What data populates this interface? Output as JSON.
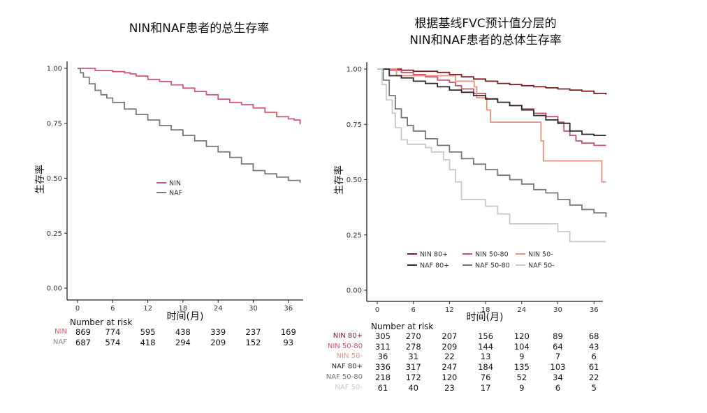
{
  "chart_data": [
    {
      "type": "line",
      "title": "NIN和NAF患者的总生存率",
      "xlabel": "时间(月)",
      "ylabel": "生存率",
      "xlim": [
        0,
        38
      ],
      "ylim": [
        0,
        1
      ],
      "x_ticks": [
        "0",
        "6",
        "12",
        "18",
        "24",
        "30",
        "36"
      ],
      "y_ticks": [
        "0.00",
        "0.25",
        "0.50",
        "0.75",
        "1.00"
      ],
      "legend_position": "center",
      "series": [
        {
          "name": "NIN",
          "color": "#d2596f",
          "points": [
            [
              0,
              1.0
            ],
            [
              3,
              0.99
            ],
            [
              6,
              0.985
            ],
            [
              8,
              0.98
            ],
            [
              9,
              0.975
            ],
            [
              10,
              0.965
            ],
            [
              12,
              0.95
            ],
            [
              14,
              0.94
            ],
            [
              16,
              0.925
            ],
            [
              18,
              0.91
            ],
            [
              20,
              0.895
            ],
            [
              22,
              0.88
            ],
            [
              24,
              0.86
            ],
            [
              26,
              0.845
            ],
            [
              28,
              0.835
            ],
            [
              30,
              0.82
            ],
            [
              32,
              0.8
            ],
            [
              34,
              0.78
            ],
            [
              36,
              0.77
            ],
            [
              37,
              0.765
            ],
            [
              38,
              0.745
            ]
          ]
        },
        {
          "name": "NAF",
          "color": "#7a7a7a",
          "points": [
            [
              0,
              1.0
            ],
            [
              0.5,
              0.98
            ],
            [
              1,
              0.96
            ],
            [
              2,
              0.93
            ],
            [
              3,
              0.9
            ],
            [
              4,
              0.88
            ],
            [
              5,
              0.865
            ],
            [
              6,
              0.845
            ],
            [
              8,
              0.815
            ],
            [
              10,
              0.79
            ],
            [
              12,
              0.765
            ],
            [
              14,
              0.74
            ],
            [
              16,
              0.72
            ],
            [
              18,
              0.695
            ],
            [
              20,
              0.67
            ],
            [
              22,
              0.645
            ],
            [
              24,
              0.62
            ],
            [
              26,
              0.595
            ],
            [
              28,
              0.565
            ],
            [
              30,
              0.535
            ],
            [
              32,
              0.52
            ],
            [
              34,
              0.505
            ],
            [
              36,
              0.49
            ],
            [
              38,
              0.48
            ]
          ]
        }
      ],
      "risk_table": {
        "header": "Number at risk",
        "times": [
          0,
          6,
          12,
          18,
          24,
          30,
          36
        ],
        "rows": [
          {
            "label": "NIN",
            "color": "#d2596f",
            "values": [
              "869",
              "774",
              "595",
              "438",
              "339",
              "237",
              "169"
            ]
          },
          {
            "label": "NAF",
            "color": "#888888",
            "values": [
              "687",
              "574",
              "418",
              "294",
              "209",
              "152",
              "93"
            ]
          }
        ]
      }
    },
    {
      "type": "line",
      "title_line1": "根据基线FVC预计值分层的",
      "title_line2": "NIN和NAF患者的总体生存率",
      "xlabel": "时间(月)",
      "ylabel": "生存率",
      "xlim": [
        0,
        38
      ],
      "ylim": [
        0,
        1
      ],
      "x_ticks": [
        "0",
        "6",
        "12",
        "18",
        "24",
        "30",
        "36"
      ],
      "y_ticks": [
        "0.00",
        "0.25",
        "0.50",
        "0.75",
        "1.00"
      ],
      "legend_position": "bottom-right",
      "series": [
        {
          "name": "NIN 80+",
          "color": "#7b1d25",
          "points": [
            [
              0,
              1.0
            ],
            [
              2,
              1.0
            ],
            [
              4,
              0.995
            ],
            [
              6,
              0.99
            ],
            [
              8,
              0.99
            ],
            [
              10,
              0.985
            ],
            [
              12,
              0.975
            ],
            [
              14,
              0.965
            ],
            [
              16,
              0.955
            ],
            [
              18,
              0.945
            ],
            [
              20,
              0.935
            ],
            [
              22,
              0.93
            ],
            [
              24,
              0.925
            ],
            [
              26,
              0.92
            ],
            [
              28,
              0.915
            ],
            [
              30,
              0.91
            ],
            [
              32,
              0.905
            ],
            [
              34,
              0.9
            ],
            [
              36,
              0.89
            ],
            [
              38,
              0.885
            ]
          ]
        },
        {
          "name": "NIN 50-80",
          "color": "#c9536b",
          "points": [
            [
              0,
              1.0
            ],
            [
              2,
              0.995
            ],
            [
              4,
              0.985
            ],
            [
              6,
              0.975
            ],
            [
              8,
              0.965
            ],
            [
              10,
              0.95
            ],
            [
              12,
              0.94
            ],
            [
              13,
              0.925
            ],
            [
              14,
              0.91
            ],
            [
              16,
              0.89
            ],
            [
              18,
              0.865
            ],
            [
              20,
              0.85
            ],
            [
              22,
              0.835
            ],
            [
              24,
              0.82
            ],
            [
              26,
              0.8
            ],
            [
              28,
              0.785
            ],
            [
              30,
              0.76
            ],
            [
              31,
              0.72
            ],
            [
              32,
              0.7
            ],
            [
              33,
              0.675
            ],
            [
              34,
              0.665
            ],
            [
              36,
              0.655
            ],
            [
              38,
              0.655
            ]
          ]
        },
        {
          "name": "NIN 50-",
          "color": "#e49478",
          "points": [
            [
              0,
              1.0
            ],
            [
              3,
              1.0
            ],
            [
              3.2,
              0.97
            ],
            [
              6,
              0.97
            ],
            [
              12,
              0.97
            ],
            [
              13,
              0.945
            ],
            [
              16,
              0.945
            ],
            [
              16.1,
              0.92
            ],
            [
              16.5,
              0.87
            ],
            [
              18,
              0.87
            ],
            [
              18.2,
              0.815
            ],
            [
              18.8,
              0.76
            ],
            [
              25,
              0.76
            ],
            [
              27,
              0.76
            ],
            [
              27.2,
              0.675
            ],
            [
              27.6,
              0.585
            ],
            [
              36,
              0.585
            ],
            [
              37,
              0.585
            ],
            [
              37.3,
              0.49
            ],
            [
              38,
              0.49
            ]
          ]
        },
        {
          "name": "NAF 80+",
          "color": "#2b2b2b",
          "points": [
            [
              0,
              1.0
            ],
            [
              2,
              0.97
            ],
            [
              4,
              0.96
            ],
            [
              6,
              0.945
            ],
            [
              8,
              0.935
            ],
            [
              10,
              0.92
            ],
            [
              12,
              0.905
            ],
            [
              14,
              0.895
            ],
            [
              16,
              0.88
            ],
            [
              18,
              0.865
            ],
            [
              20,
              0.85
            ],
            [
              22,
              0.835
            ],
            [
              24,
              0.815
            ],
            [
              26,
              0.79
            ],
            [
              28,
              0.77
            ],
            [
              30,
              0.755
            ],
            [
              32,
              0.72
            ],
            [
              34,
              0.705
            ],
            [
              36,
              0.7
            ],
            [
              38,
              0.7
            ]
          ]
        },
        {
          "name": "NAF 50-80",
          "color": "#777777",
          "points": [
            [
              0,
              1.0
            ],
            [
              1,
              0.95
            ],
            [
              2,
              0.88
            ],
            [
              3,
              0.82
            ],
            [
              4,
              0.78
            ],
            [
              5,
              0.745
            ],
            [
              6,
              0.72
            ],
            [
              8,
              0.685
            ],
            [
              10,
              0.655
            ],
            [
              12,
              0.625
            ],
            [
              14,
              0.595
            ],
            [
              16,
              0.57
            ],
            [
              18,
              0.545
            ],
            [
              20,
              0.52
            ],
            [
              22,
              0.5
            ],
            [
              24,
              0.48
            ],
            [
              26,
              0.455
            ],
            [
              28,
              0.44
            ],
            [
              30,
              0.41
            ],
            [
              32,
              0.385
            ],
            [
              34,
              0.365
            ],
            [
              36,
              0.35
            ],
            [
              38,
              0.33
            ]
          ]
        },
        {
          "name": "NAF 50-",
          "color": "#c9c9c4",
          "points": [
            [
              0,
              1.0
            ],
            [
              0.8,
              0.93
            ],
            [
              1.5,
              0.86
            ],
            [
              2.5,
              0.8
            ],
            [
              3,
              0.735
            ],
            [
              4,
              0.68
            ],
            [
              5,
              0.66
            ],
            [
              6,
              0.66
            ],
            [
              7,
              0.66
            ],
            [
              8,
              0.645
            ],
            [
              9,
              0.625
            ],
            [
              10,
              0.625
            ],
            [
              11,
              0.59
            ],
            [
              12,
              0.545
            ],
            [
              13,
              0.49
            ],
            [
              14,
              0.41
            ],
            [
              16,
              0.41
            ],
            [
              18,
              0.38
            ],
            [
              20,
              0.345
            ],
            [
              22,
              0.3
            ],
            [
              24,
              0.3
            ],
            [
              26,
              0.3
            ],
            [
              28,
              0.3
            ],
            [
              30,
              0.265
            ],
            [
              32,
              0.22
            ],
            [
              34,
              0.22
            ],
            [
              36,
              0.22
            ],
            [
              38,
              0.22
            ]
          ]
        }
      ],
      "risk_table": {
        "header": "Number at risk",
        "times": [
          0,
          6,
          12,
          18,
          24,
          30,
          36
        ],
        "rows": [
          {
            "label": "NIN 80+",
            "color": "#7b1d25",
            "values": [
              "305",
              "270",
              "207",
              "156",
              "120",
              "89",
              "68"
            ]
          },
          {
            "label": "NIN 50-80",
            "color": "#c9536b",
            "values": [
              "311",
              "278",
              "209",
              "144",
              "104",
              "64",
              "43"
            ]
          },
          {
            "label": "NIN 50-",
            "color": "#e49478",
            "values": [
              "36",
              "31",
              "22",
              "13",
              "9",
              "7",
              "6"
            ]
          },
          {
            "label": "NAF 80+",
            "color": "#2b2b2b",
            "values": [
              "336",
              "317",
              "247",
              "184",
              "135",
              "103",
              "61"
            ]
          },
          {
            "label": "NAF 50-80",
            "color": "#777777",
            "values": [
              "218",
              "172",
              "120",
              "76",
              "52",
              "34",
              "22"
            ]
          },
          {
            "label": "NAF 50-",
            "color": "#c9c9c4",
            "values": [
              "61",
              "40",
              "23",
              "17",
              "9",
              "6",
              "5"
            ]
          }
        ]
      }
    }
  ]
}
